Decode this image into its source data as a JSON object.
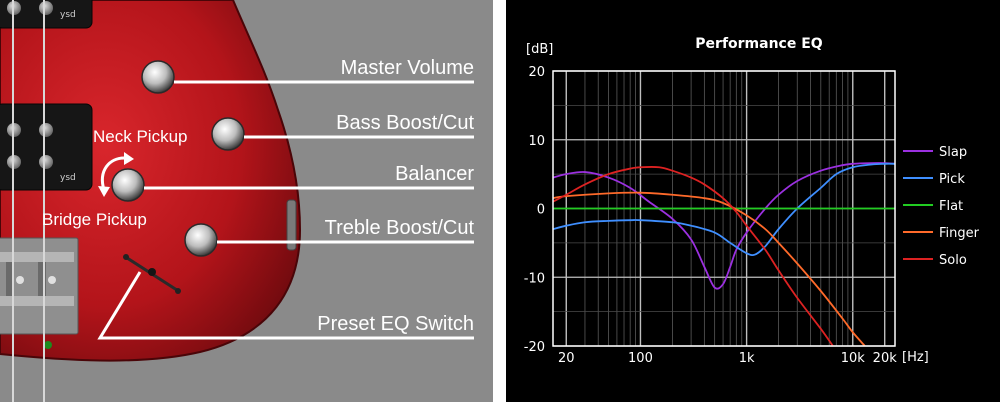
{
  "diagram": {
    "callouts": [
      {
        "id": "master-volume",
        "label": "Master Volume"
      },
      {
        "id": "bass-boost-cut",
        "label": "Bass Boost/Cut"
      },
      {
        "id": "balancer",
        "label": "Balancer"
      },
      {
        "id": "treble-boost-cut",
        "label": "Treble Boost/Cut"
      },
      {
        "id": "preset-eq-switch",
        "label": "Preset EQ Switch"
      }
    ],
    "neck_pickup_label": "Neck Pickup",
    "bridge_pickup_label": "Bridge Pickup",
    "pickup_badge": "ysd",
    "colors": {
      "body": "#b3141a",
      "background": "#8a8a8a",
      "knob": "#c8c8c8"
    }
  },
  "chart_data": {
    "type": "line",
    "title": "Performance EQ",
    "ylabel": "[dB]",
    "xlabel": "[Hz]",
    "x_scale": "log",
    "xlim": [
      15,
      25000
    ],
    "ylim": [
      -20,
      20
    ],
    "xticks": [
      {
        "value": 20,
        "label": "20"
      },
      {
        "value": 100,
        "label": "100"
      },
      {
        "value": 1000,
        "label": "1k"
      },
      {
        "value": 10000,
        "label": "10k"
      },
      {
        "value": 20000,
        "label": "20k"
      }
    ],
    "yticks": [
      {
        "value": 20,
        "label": "20"
      },
      {
        "value": 10,
        "label": "10"
      },
      {
        "value": 0,
        "label": "0"
      },
      {
        "value": -10,
        "label": "-10"
      },
      {
        "value": -20,
        "label": "-20"
      }
    ],
    "grid": true,
    "legend": "right",
    "series": [
      {
        "name": "Slap",
        "color": "#9b30e0",
        "points": [
          [
            15,
            4.5
          ],
          [
            20,
            5
          ],
          [
            30,
            5.3
          ],
          [
            50,
            4.5
          ],
          [
            80,
            3
          ],
          [
            120,
            1
          ],
          [
            200,
            -1.5
          ],
          [
            300,
            -4.5
          ],
          [
            400,
            -8.5
          ],
          [
            500,
            -11.5
          ],
          [
            600,
            -11
          ],
          [
            700,
            -8.5
          ],
          [
            800,
            -6
          ],
          [
            1000,
            -3.5
          ],
          [
            1500,
            0
          ],
          [
            2000,
            2
          ],
          [
            3000,
            4
          ],
          [
            5000,
            5.5
          ],
          [
            8000,
            6.3
          ],
          [
            10000,
            6.5
          ],
          [
            15000,
            6.6
          ],
          [
            20000,
            6.6
          ],
          [
            25000,
            6.5
          ]
        ]
      },
      {
        "name": "Pick",
        "color": "#3f8fff",
        "points": [
          [
            15,
            -3
          ],
          [
            20,
            -2.5
          ],
          [
            30,
            -2
          ],
          [
            50,
            -1.8
          ],
          [
            80,
            -1.7
          ],
          [
            100,
            -1.7
          ],
          [
            200,
            -2
          ],
          [
            300,
            -2.5
          ],
          [
            500,
            -3.5
          ],
          [
            700,
            -5
          ],
          [
            1000,
            -6.5
          ],
          [
            1200,
            -6.7
          ],
          [
            1500,
            -5.5
          ],
          [
            2000,
            -3
          ],
          [
            3000,
            0
          ],
          [
            5000,
            3
          ],
          [
            7000,
            5
          ],
          [
            10000,
            6
          ],
          [
            15000,
            6.4
          ],
          [
            20000,
            6.5
          ],
          [
            25000,
            6.5
          ]
        ]
      },
      {
        "name": "Flat",
        "color": "#22cc22",
        "points": [
          [
            15,
            0
          ],
          [
            25000,
            0
          ]
        ]
      },
      {
        "name": "Finger",
        "color": "#ff6a2a",
        "points": [
          [
            15,
            1.5
          ],
          [
            20,
            1.8
          ],
          [
            50,
            2.2
          ],
          [
            100,
            2.3
          ],
          [
            200,
            2
          ],
          [
            400,
            1.5
          ],
          [
            600,
            0.8
          ],
          [
            1000,
            -1
          ],
          [
            1500,
            -3
          ],
          [
            2000,
            -5
          ],
          [
            3000,
            -8
          ],
          [
            5000,
            -12
          ],
          [
            8000,
            -16
          ],
          [
            10000,
            -18
          ],
          [
            13000,
            -20
          ]
        ]
      },
      {
        "name": "Solo",
        "color": "#dd2222",
        "points": [
          [
            15,
            1
          ],
          [
            20,
            2
          ],
          [
            30,
            3.5
          ],
          [
            50,
            5
          ],
          [
            80,
            5.8
          ],
          [
            100,
            6
          ],
          [
            150,
            6
          ],
          [
            200,
            5.5
          ],
          [
            300,
            4.5
          ],
          [
            400,
            3.5
          ],
          [
            600,
            1.5
          ],
          [
            800,
            -0.5
          ],
          [
            1000,
            -2.5
          ],
          [
            1500,
            -6
          ],
          [
            2000,
            -9
          ],
          [
            3000,
            -13
          ],
          [
            5000,
            -17.5
          ],
          [
            6500,
            -20
          ]
        ]
      }
    ]
  }
}
